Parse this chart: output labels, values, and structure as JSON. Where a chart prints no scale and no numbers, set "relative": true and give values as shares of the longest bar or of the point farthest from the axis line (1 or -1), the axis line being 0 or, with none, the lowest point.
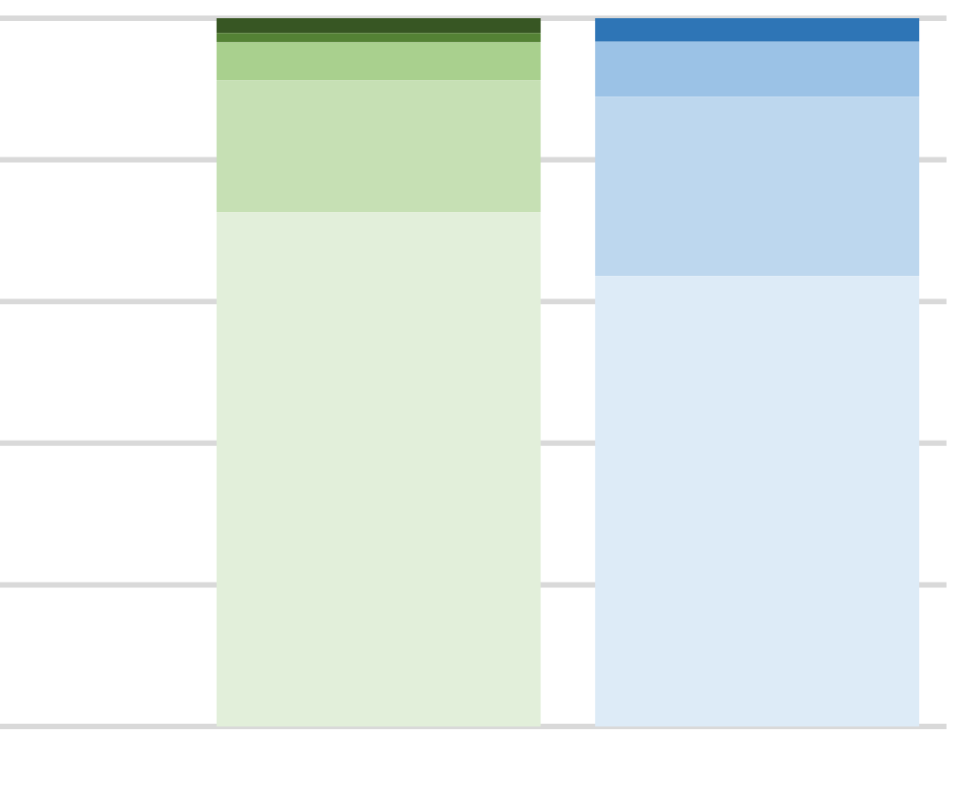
{
  "chart_data": {
    "type": "bar",
    "stacked": true,
    "relative": true,
    "grid": "y",
    "legend": false,
    "categories": [
      null,
      null
    ],
    "series": [
      {
        "colors": [
          "#e2efda",
          "#ddebf7"
        ],
        "values": [
          0.726,
          0.636
        ]
      },
      {
        "colors": [
          "#c6e0b4",
          "#bdd7ee"
        ],
        "values": [
          0.186,
          0.253
        ]
      },
      {
        "colors": [
          "#a9d08e",
          "#9bc2e6"
        ],
        "values": [
          0.054,
          0.078
        ]
      },
      {
        "colors": [
          "#548235",
          "#2e75b6"
        ],
        "values": [
          0.013,
          0.033
        ]
      },
      {
        "colors": [
          "#375623",
          "#375623"
        ],
        "values": [
          0.021,
          null
        ]
      }
    ]
  }
}
